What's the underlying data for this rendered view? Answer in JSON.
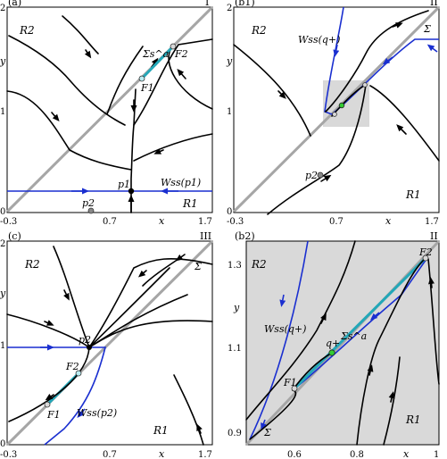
{
  "panels": [
    {
      "id": "a",
      "label": "(a)",
      "roman": "I",
      "x_ticks": [
        "-0.3",
        "0.7",
        "1.7"
      ],
      "x_axis": "x",
      "y_ticks": [
        "0",
        "1",
        "2"
      ],
      "y_axis": "y",
      "regions": [
        "R2",
        "R1"
      ],
      "points": [
        "p1",
        "p2",
        "F1",
        "F2"
      ],
      "curve_labels": [
        "Wss(p1)",
        "Σs^a"
      ]
    },
    {
      "id": "b1",
      "label": "(b1)",
      "roman": "II",
      "x_ticks": [
        "-0.3",
        "0.7",
        "1.7"
      ],
      "x_axis": "x",
      "y_ticks": [
        "0",
        "1",
        "2"
      ],
      "y_axis": "y",
      "regions": [
        "R2",
        "R1"
      ],
      "points": [
        "p2"
      ],
      "curve_labels": [
        "Wss(q+)",
        "Σ"
      ]
    },
    {
      "id": "c",
      "label": "(c)",
      "roman": "III",
      "x_ticks": [
        "-0.3",
        "0.7",
        "1.7"
      ],
      "x_axis": "x",
      "y_ticks": [
        "0",
        "1",
        "2"
      ],
      "y_axis": "y",
      "regions": [
        "R2",
        "R1"
      ],
      "points": [
        "p2",
        "F1",
        "F2"
      ],
      "curve_labels": [
        "Wss(p2)",
        "Σ"
      ]
    },
    {
      "id": "b2",
      "label": "(b2)",
      "roman": "II",
      "x_ticks": [
        "0.6",
        "0.8",
        "1"
      ],
      "x_axis": "x",
      "y_ticks": [
        "0.9",
        "1.1",
        "1.3"
      ],
      "y_axis": "y",
      "regions": [
        "R2",
        "R1"
      ],
      "points": [
        "q+",
        "F1",
        "F2"
      ],
      "curve_labels": [
        "Wss(q+)",
        "Σs^a",
        "Σ"
      ]
    }
  ],
  "colors": {
    "manifold_blue": "#1a2fd0",
    "sigma_gray": "#a6a6a6",
    "sliding_cyan": "#23a7b8",
    "zoom_box": "#d9d9d9",
    "q_plus_green": "#33cc33"
  }
}
